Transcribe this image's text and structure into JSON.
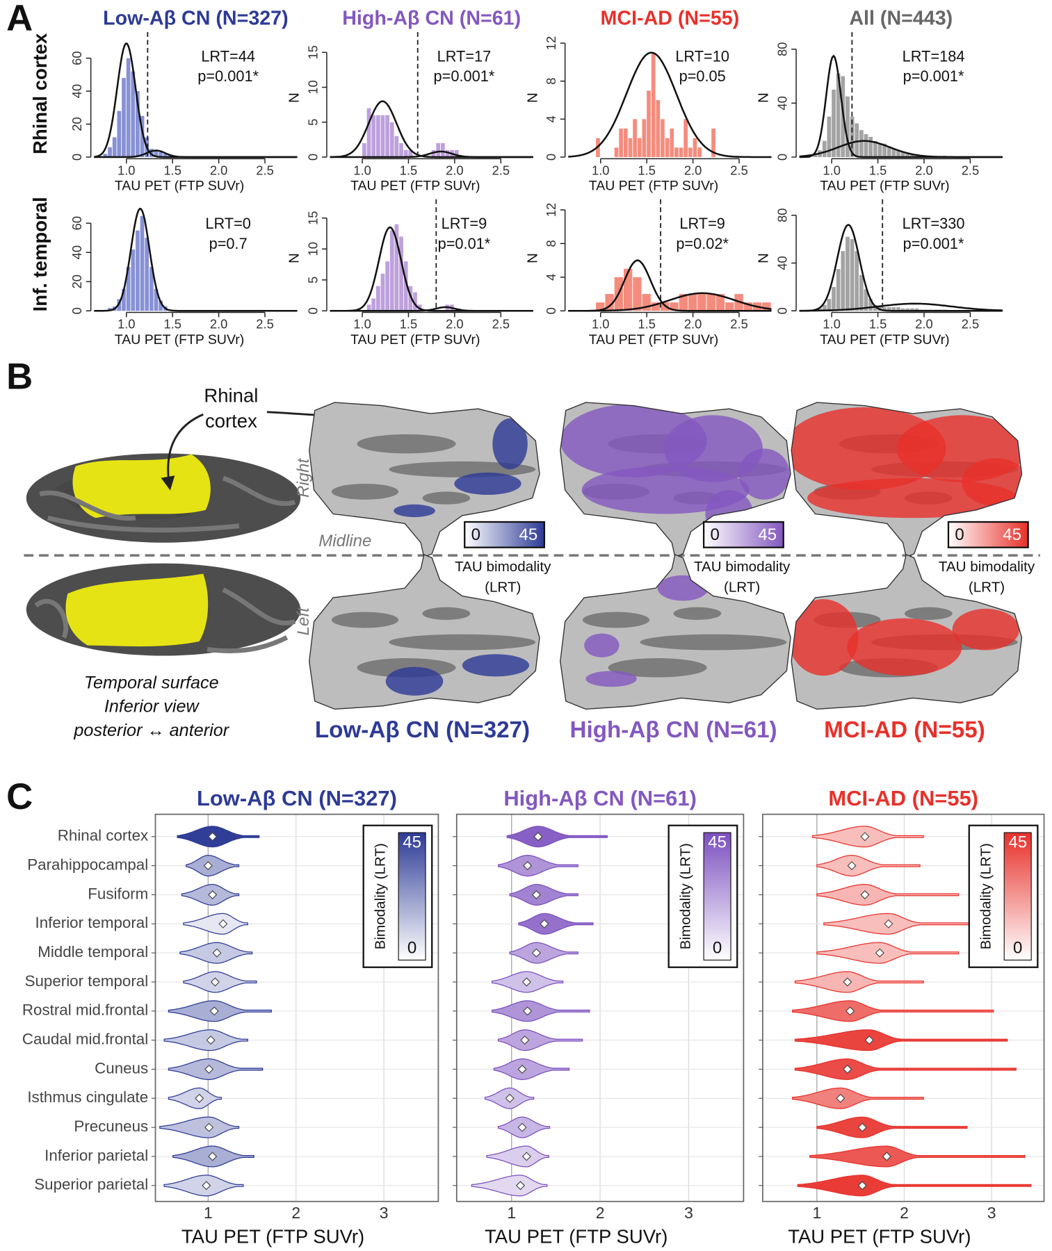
{
  "panel_labels": [
    "A",
    "B",
    "C"
  ],
  "groups": [
    {
      "name": "Low-Aβ CN (N=327)",
      "color": "#2d3a96"
    },
    {
      "name": "High-Aβ CN (N=61)",
      "color": "#8357c0"
    },
    {
      "name": "MCI-AD (N=55)",
      "color": "#e8302a"
    },
    {
      "name": "All (N=443)",
      "color": "#666666"
    }
  ],
  "panel_a_rows": [
    "Rhinal cortex",
    "Inf. temporal"
  ],
  "panel_b": {
    "callout": [
      "Rhinal",
      "cortex"
    ],
    "hemispheres": [
      "Right",
      "Left"
    ],
    "midline": "Midline",
    "colorbar_ticks": [
      0,
      45
    ],
    "colorbar_label": [
      "TAU bimodality",
      "(LRT)"
    ],
    "caption": [
      "Temporal surface",
      "Inferior view",
      "posterior ↔ anterior"
    ]
  },
  "chart_data": [
    {
      "type": "histogram",
      "xlabel": "TAU PET (FTP SUVr)",
      "color": "#8791d4",
      "annotations": [
        "LRT=44",
        "p=0.001*"
      ],
      "bins": [
        0.75,
        0.8,
        0.85,
        0.9,
        0.95,
        1.0,
        1.05,
        1.1,
        1.15,
        1.2,
        1.25,
        1.3,
        1.35,
        1.4,
        1.45,
        1.5,
        1.55
      ],
      "counts": [
        2,
        6,
        12,
        28,
        48,
        60,
        52,
        40,
        25,
        12,
        5,
        4,
        3,
        2,
        1,
        1
      ],
      "components": [
        {
          "mean": 1.0,
          "sd": 0.1,
          "height": 69
        },
        {
          "mean": 1.32,
          "sd": 0.1,
          "height": 4
        }
      ],
      "cutoff": 1.23,
      "xlim": [
        0.65,
        2.85
      ],
      "xticks": [
        {
          "value": 1,
          "label": "1.0"
        },
        1.5,
        {
          "value": 2,
          "label": "2.0"
        },
        2.5
      ],
      "ylim": [
        0,
        72
      ],
      "yticks": [
        0,
        20,
        40,
        60
      ]
    },
    {
      "type": "histogram",
      "xlabel": "TAU PET (FTP SUVr)",
      "ylabel": "N",
      "color": "#bda0dc",
      "annotations": [
        "LRT=17",
        "p=0.001*"
      ],
      "bins": [
        1.0,
        1.05,
        1.1,
        1.15,
        1.2,
        1.25,
        1.3,
        1.35,
        1.4,
        1.45,
        1.5,
        1.55,
        1.6,
        1.65,
        1.7,
        1.75,
        1.8,
        1.85,
        1.9,
        1.95,
        2.0,
        2.05
      ],
      "counts": [
        2,
        7,
        6,
        6,
        6,
        6,
        5,
        3,
        2,
        1,
        1,
        0,
        0,
        0,
        0,
        1,
        2,
        2,
        1,
        1,
        1
      ],
      "components": [
        {
          "mean": 1.22,
          "sd": 0.15,
          "height": 8
        },
        {
          "mean": 1.85,
          "sd": 0.12,
          "height": 0.8
        }
      ],
      "cutoff": 1.6,
      "xlim": [
        0.65,
        2.85
      ],
      "xticks": [
        {
          "value": 1,
          "label": "1.0"
        },
        1.5,
        {
          "value": 2,
          "label": "2.0"
        },
        2.5
      ],
      "ylim": [
        0,
        17
      ],
      "yticks": [
        0,
        5,
        10,
        15
      ]
    },
    {
      "type": "histogram",
      "xlabel": "TAU PET (FTP SUVr)",
      "ylabel": "N",
      "color": "#f48c7d",
      "annotations": [
        "LRT=10",
        "p=0.05"
      ],
      "bins": [
        0.95,
        1.0,
        1.05,
        1.1,
        1.15,
        1.2,
        1.25,
        1.3,
        1.35,
        1.4,
        1.45,
        1.5,
        1.55,
        1.6,
        1.65,
        1.7,
        1.75,
        1.8,
        1.85,
        1.9,
        1.95,
        2.0,
        2.05,
        2.1,
        2.15,
        2.2,
        2.25
      ],
      "counts": [
        2,
        0,
        0,
        0,
        1,
        3,
        3,
        2,
        4,
        2,
        4,
        7,
        11,
        6,
        4,
        2,
        3,
        1,
        1,
        4,
        1,
        2,
        1,
        0,
        0,
        3
      ],
      "components": [
        {
          "mean": 1.55,
          "sd": 0.27,
          "height": 11
        }
      ],
      "xlim": [
        0.65,
        2.85
      ],
      "xticks": [
        {
          "value": 1,
          "label": "1.0"
        },
        1.5,
        {
          "value": 2,
          "label": "2.0"
        },
        2.5
      ],
      "ylim": [
        0,
        12.5
      ],
      "yticks": [
        0,
        4,
        8,
        12
      ]
    },
    {
      "type": "histogram",
      "xlabel": "TAU PET (FTP SUVr)",
      "ylabel": "N",
      "color": "#a3a3a3",
      "annotations": [
        "LRT=184",
        "p=0.001*"
      ],
      "bins": [
        0.8,
        0.85,
        0.9,
        0.95,
        1.0,
        1.05,
        1.1,
        1.15,
        1.2,
        1.25,
        1.3,
        1.35,
        1.4,
        1.45,
        1.5,
        1.55,
        1.6,
        1.65,
        1.7,
        1.75,
        1.8,
        1.85,
        1.9,
        1.95,
        2.0,
        2.05,
        2.1,
        2.15,
        2.2,
        2.25
      ],
      "counts": [
        2,
        5,
        12,
        30,
        50,
        62,
        60,
        45,
        30,
        25,
        20,
        17,
        15,
        12,
        10,
        10,
        8,
        6,
        5,
        4,
        3,
        2,
        2,
        1,
        1,
        0,
        0,
        0,
        1
      ],
      "components": [
        {
          "mean": 1.02,
          "sd": 0.08,
          "height": 75
        },
        {
          "mean": 1.35,
          "sd": 0.28,
          "height": 12
        }
      ],
      "cutoff": 1.22,
      "xlim": [
        0.65,
        2.85
      ],
      "xticks": [
        {
          "value": 1,
          "label": "1.0"
        },
        1.5,
        {
          "value": 2,
          "label": "2.0"
        },
        2.5
      ],
      "ylim": [
        0,
        88
      ],
      "yticks": [
        0,
        40,
        80
      ]
    },
    {
      "type": "histogram",
      "xlabel": "TAU PET (FTP SUVr)",
      "color": "#8791d4",
      "annotations": [
        "LRT=0",
        "p=0.7"
      ],
      "bins": [
        0.8,
        0.85,
        0.9,
        0.95,
        1.0,
        1.05,
        1.1,
        1.15,
        1.2,
        1.25,
        1.3,
        1.35,
        1.4,
        1.45
      ],
      "counts": [
        2,
        3,
        8,
        15,
        30,
        42,
        55,
        65,
        50,
        30,
        15,
        7,
        3
      ],
      "components": [
        {
          "mean": 1.15,
          "sd": 0.1,
          "height": 70
        }
      ],
      "xlim": [
        0.65,
        2.85
      ],
      "xticks": [
        {
          "value": 1,
          "label": "1.0"
        },
        1.5,
        {
          "value": 2,
          "label": "2.0"
        },
        2.5
      ],
      "ylim": [
        0,
        72
      ],
      "yticks": [
        0,
        20,
        40,
        60
      ]
    },
    {
      "type": "histogram",
      "xlabel": "TAU PET (FTP SUVr)",
      "ylabel": "N",
      "color": "#bda0dc",
      "annotations": [
        "LRT=9",
        "p=0.01*"
      ],
      "bins": [
        1.05,
        1.1,
        1.15,
        1.2,
        1.25,
        1.3,
        1.35,
        1.4,
        1.45,
        1.5,
        1.55,
        1.6,
        1.65,
        1.7,
        1.75,
        1.8,
        1.85,
        1.9,
        1.95,
        2.0
      ],
      "counts": [
        1,
        2,
        4,
        6,
        8,
        13,
        14,
        12,
        8,
        4,
        3,
        1,
        0,
        0,
        0,
        0,
        0,
        1,
        1
      ],
      "components": [
        {
          "mean": 1.3,
          "sd": 0.12,
          "height": 13.5
        },
        {
          "mean": 1.9,
          "sd": 0.1,
          "height": 0.6
        }
      ],
      "cutoff": 1.8,
      "xlim": [
        0.65,
        2.85
      ],
      "xticks": [
        {
          "value": 1,
          "label": "1.0"
        },
        1.5,
        {
          "value": 2,
          "label": "2.0"
        },
        2.5
      ],
      "ylim": [
        0,
        17
      ],
      "yticks": [
        0,
        5,
        10,
        15
      ]
    },
    {
      "type": "histogram",
      "xlabel": "TAU PET (FTP SUVr)",
      "ylabel": "N",
      "color": "#f48c7d",
      "annotations": [
        "LRT=9",
        "p=0.02*"
      ],
      "bins": [
        0.95,
        1.05,
        1.15,
        1.25,
        1.35,
        1.45,
        1.55,
        1.65,
        1.75,
        1.85,
        1.95,
        2.05,
        2.15,
        2.25,
        2.35,
        2.45,
        2.55,
        2.65,
        2.75,
        2.85
      ],
      "counts": [
        1,
        2,
        4,
        5,
        4,
        2,
        1,
        1,
        1,
        2,
        2,
        2,
        2,
        2,
        1,
        2,
        1,
        1,
        1
      ],
      "components": [
        {
          "mean": 1.4,
          "sd": 0.14,
          "height": 6
        },
        {
          "mean": 2.1,
          "sd": 0.35,
          "height": 2.1
        }
      ],
      "cutoff": 1.65,
      "xlim": [
        0.65,
        2.85
      ],
      "xticks": [
        {
          "value": 1,
          "label": "1.0"
        },
        1.5,
        {
          "value": 2,
          "label": "2.0"
        },
        2.5
      ],
      "ylim": [
        0,
        12.5
      ],
      "yticks": [
        0,
        4,
        8,
        12
      ]
    },
    {
      "type": "histogram",
      "xlabel": "TAU PET (FTP SUVr)",
      "ylabel": "N",
      "color": "#a3a3a3",
      "annotations": [
        "LRT=330",
        "p=0.001*"
      ],
      "bins": [
        0.85,
        0.9,
        0.95,
        1.0,
        1.05,
        1.1,
        1.15,
        1.2,
        1.25,
        1.3,
        1.35,
        1.4,
        1.45,
        1.5,
        1.55,
        1.6,
        1.65,
        1.7,
        1.75,
        1.8,
        1.85,
        1.9,
        1.95,
        2.0,
        2.05,
        2.1,
        2.15,
        2.2,
        2.25
      ],
      "counts": [
        2,
        5,
        10,
        20,
        35,
        50,
        62,
        60,
        50,
        30,
        18,
        10,
        5,
        4,
        3,
        3,
        3,
        3,
        2,
        2,
        2,
        2,
        1,
        1,
        1,
        1,
        1,
        1
      ],
      "components": [
        {
          "mean": 1.18,
          "sd": 0.12,
          "height": 72
        },
        {
          "mean": 1.9,
          "sd": 0.4,
          "height": 6
        }
      ],
      "cutoff": 1.55,
      "xlim": [
        0.65,
        2.85
      ],
      "xticks": [
        {
          "value": 1,
          "label": "1.0"
        },
        1.5,
        {
          "value": 2,
          "label": "2.0"
        },
        2.5
      ],
      "ylim": [
        0,
        88
      ],
      "yticks": [
        0,
        40,
        80
      ]
    },
    {
      "type": "violin",
      "xlabel": "TAU PET (FTP SUVr)",
      "color": "#2d3a96",
      "colorbar_label": "Bimodality (LRT)",
      "clim": [
        0,
        45
      ],
      "cticks": [
        0,
        45
      ],
      "xlim": [
        0.4,
        3.62
      ],
      "xticks": [
        1,
        2,
        3
      ],
      "categories": [
        "Rhinal cortex",
        "Parahippocampal",
        "Fusiform",
        "Inferior temporal",
        "Middle temporal",
        "Superior temporal",
        "Rostral mid.frontal",
        "Caudal mid.frontal",
        "Cuneus",
        "Isthmus cingulate",
        "Precuneus",
        "Inferior parietal",
        "Superior parietal"
      ],
      "medians": [
        1.05,
        1.0,
        1.05,
        1.17,
        1.1,
        1.08,
        1.07,
        1.03,
        1.01,
        0.9,
        1.01,
        1.05,
        0.98
      ],
      "mins": [
        0.65,
        0.75,
        0.7,
        0.72,
        0.68,
        0.72,
        0.55,
        0.5,
        0.55,
        0.55,
        0.45,
        0.6,
        0.5
      ],
      "maxs": [
        1.58,
        1.35,
        1.35,
        1.45,
        1.5,
        1.55,
        1.72,
        1.45,
        1.62,
        1.15,
        1.35,
        1.52,
        1.4
      ],
      "lrt": [
        44,
        15,
        12,
        0,
        8,
        5,
        15,
        8,
        12,
        5,
        10,
        15,
        5
      ]
    },
    {
      "type": "violin",
      "xlabel": "TAU PET (FTP SUVr)",
      "color": "#7b4fbf",
      "colorbar_label": "Bimodality (LRT)",
      "clim": [
        0,
        45
      ],
      "cticks": [
        0,
        45
      ],
      "xlim": [
        0.38,
        3.62
      ],
      "xticks": [
        1,
        2,
        3
      ],
      "medians": [
        1.3,
        1.18,
        1.28,
        1.37,
        1.28,
        1.17,
        1.18,
        1.15,
        1.12,
        0.98,
        1.12,
        1.17,
        1.1
      ],
      "mins": [
        0.95,
        0.85,
        0.98,
        1.08,
        0.98,
        0.78,
        0.78,
        0.85,
        0.8,
        0.7,
        0.85,
        0.72,
        0.55
      ],
      "maxs": [
        2.08,
        1.75,
        1.75,
        1.92,
        1.75,
        1.58,
        1.88,
        1.8,
        1.65,
        1.25,
        1.43,
        1.42,
        1.4
      ],
      "lrt": [
        40,
        25,
        30,
        35,
        20,
        12,
        25,
        20,
        20,
        12,
        15,
        8,
        5
      ]
    },
    {
      "type": "violin",
      "xlabel": "TAU PET (FTP SUVr)",
      "color": "#e8302a",
      "colorbar_label": "Bimodality (LRT)",
      "clim": [
        0,
        45
      ],
      "cticks": [
        0,
        45
      ],
      "xlim": [
        0.38,
        3.6
      ],
      "xticks": [
        1,
        2,
        3
      ],
      "medians": [
        1.55,
        1.4,
        1.55,
        1.82,
        1.72,
        1.35,
        1.38,
        1.6,
        1.35,
        1.27,
        1.52,
        1.8,
        1.52
      ],
      "mins": [
        0.95,
        1.0,
        1.0,
        1.08,
        1.0,
        0.75,
        0.72,
        0.75,
        0.75,
        0.72,
        1.0,
        0.92,
        0.78
      ],
      "maxs": [
        2.22,
        2.18,
        2.62,
        2.75,
        2.62,
        2.22,
        3.02,
        3.18,
        3.28,
        2.22,
        2.72,
        3.38,
        3.45
      ],
      "lrt": [
        10,
        10,
        12,
        10,
        10,
        12,
        30,
        40,
        38,
        25,
        40,
        35,
        42
      ]
    }
  ]
}
